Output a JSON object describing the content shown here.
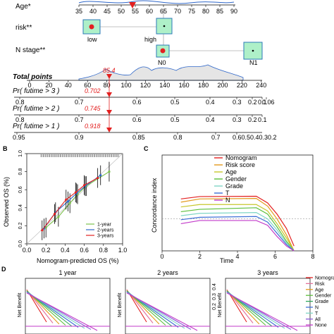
{
  "nomogram": {
    "variables": [
      {
        "label": "Age*",
        "scale_ticks": [
          "35",
          "40",
          "45",
          "50",
          "55",
          "60",
          "65",
          "70",
          "75",
          "80",
          "85",
          "90"
        ]
      },
      {
        "label": "risk**",
        "levels": [
          "low",
          "high"
        ]
      },
      {
        "label": "N stage**",
        "levels": [
          "N0",
          "N1"
        ]
      }
    ],
    "total_points": {
      "label": "Total points",
      "ticks": [
        "0",
        "20",
        "40",
        "60",
        "80",
        "100",
        "120",
        "140",
        "160",
        "180",
        "200",
        "220",
        "240"
      ],
      "value": "85.4"
    },
    "probabilities": [
      {
        "label": "Pr( futime > 3 )",
        "value": "0.702",
        "ticks": [
          "0.8",
          "0.7",
          "0.6",
          "0.5",
          "0.4",
          "0.3",
          "0.2",
          "0.1",
          "0.06"
        ]
      },
      {
        "label": "Pr( futime > 2 )",
        "value": "0.745",
        "ticks": [
          "0.8",
          "0.7",
          "0.6",
          "0.5",
          "0.4",
          "0.3",
          "0.2",
          "0.1"
        ]
      },
      {
        "label": "Pr( futime > 1 )",
        "value": "0.918",
        "ticks": [
          "0.95",
          "0.9",
          "0.85",
          "0.8",
          "0.7",
          "0.60.50.40.30.2"
        ]
      }
    ],
    "marker_color": "#e32020"
  },
  "panel_b": {
    "letter": "B",
    "chart_data": {
      "type": "line",
      "xlabel": "Nomogram-predicted OS (%)",
      "ylabel": "Observed OS (%)",
      "xlim": [
        0.0,
        1.0
      ],
      "ylim": [
        0.0,
        1.0
      ],
      "x_ticks": [
        "0.0",
        "0.2",
        "0.4",
        "0.6",
        "0.8",
        "1.0"
      ],
      "y_ticks": [
        "0.0",
        "0.2",
        "0.4",
        "0.6",
        "0.8",
        "1.0"
      ],
      "series": [
        {
          "name": "1-year",
          "color": "#7cc04c",
          "x": [
            0.2,
            0.33,
            0.45,
            0.53,
            0.62,
            0.86
          ],
          "y": [
            0.18,
            0.3,
            0.45,
            0.55,
            0.64,
            0.8
          ]
        },
        {
          "name": "2-years",
          "color": "#2f67c9",
          "x": [
            0.18,
            0.3,
            0.43,
            0.52,
            0.61,
            0.77
          ],
          "y": [
            0.17,
            0.35,
            0.47,
            0.56,
            0.64,
            0.76
          ]
        },
        {
          "name": "3-years",
          "color": "#e32020",
          "x": [
            0.16,
            0.29,
            0.41,
            0.51,
            0.6,
            0.74
          ],
          "y": [
            0.15,
            0.33,
            0.49,
            0.57,
            0.65,
            0.73
          ]
        }
      ]
    }
  },
  "panel_c": {
    "letter": "C",
    "chart_data": {
      "type": "line",
      "xlabel": "Time",
      "ylabel": "Concordance index",
      "xlim": [
        0,
        8
      ],
      "ylim": [
        0.3,
        0.9
      ],
      "x_ticks": [
        "0",
        "2",
        "4",
        "6",
        "8"
      ],
      "series": [
        {
          "name": "Nomogram",
          "color": "#e32020",
          "x": [
            1,
            2,
            5,
            5.6,
            6.1,
            6.6,
            7.0
          ],
          "y": [
            0.625,
            0.64,
            0.642,
            0.6,
            0.53,
            0.44,
            0.33
          ]
        },
        {
          "name": "Risk score",
          "color": "#e39a1c",
          "x": [
            1,
            2,
            5,
            5.6,
            6.1,
            6.6,
            7.0
          ],
          "y": [
            0.605,
            0.625,
            0.628,
            0.58,
            0.5,
            0.4,
            0.3
          ]
        },
        {
          "name": "Age",
          "color": "#c7c72c",
          "x": [
            1,
            2,
            5,
            5.6,
            6.1,
            6.6,
            7.0
          ],
          "y": [
            0.575,
            0.59,
            0.59,
            0.55,
            0.47,
            0.38,
            0.3
          ]
        },
        {
          "name": "Gender",
          "color": "#5bbf3a",
          "x": [
            1,
            2,
            5,
            5.6,
            6.1,
            6.6,
            7.0
          ],
          "y": [
            0.545,
            0.56,
            0.57,
            0.53,
            0.45,
            0.36,
            0.3
          ]
        },
        {
          "name": "Grade",
          "color": "#7fd6c6",
          "x": [
            1,
            2,
            5,
            5.6,
            6.1,
            6.6,
            7.0
          ],
          "y": [
            0.52,
            0.535,
            0.54,
            0.5,
            0.43,
            0.35,
            0.3
          ]
        },
        {
          "name": "T",
          "color": "#3d6fd6",
          "x": [
            1,
            2,
            5,
            5.6,
            6.1,
            6.6,
            7.0
          ],
          "y": [
            0.495,
            0.51,
            0.515,
            0.48,
            0.41,
            0.34,
            0.3
          ]
        },
        {
          "name": "N",
          "color": "#c23ac9",
          "x": [
            1,
            2,
            5,
            5.6,
            6.1,
            6.6,
            7.0
          ],
          "y": [
            0.47,
            0.49,
            0.49,
            0.46,
            0.39,
            0.33,
            0.3
          ]
        }
      ],
      "reference_line": 0.5
    }
  },
  "panel_d": {
    "letter": "D",
    "ylabel": "Net Benefit",
    "titles": [
      "1 year",
      "2 years",
      "3 years"
    ],
    "y_ticks_third": [
      "0.4",
      "0.3",
      "0.2"
    ],
    "legend": [
      {
        "name": "Nomogram",
        "color": "#e32020"
      },
      {
        "name": "Risk",
        "color": "#e3709a"
      },
      {
        "name": "Age",
        "color": "#e39a1c"
      },
      {
        "name": "Gender",
        "color": "#5bbf3a"
      },
      {
        "name": "Grade",
        "color": "#2fa85a"
      },
      {
        "name": "N",
        "color": "#3d6fd6"
      },
      {
        "name": "T",
        "color": "#7fd6c6"
      },
      {
        "name": "All",
        "color": "#8a5ad6"
      },
      {
        "name": "None",
        "color": "#c23ac9"
      }
    ]
  }
}
